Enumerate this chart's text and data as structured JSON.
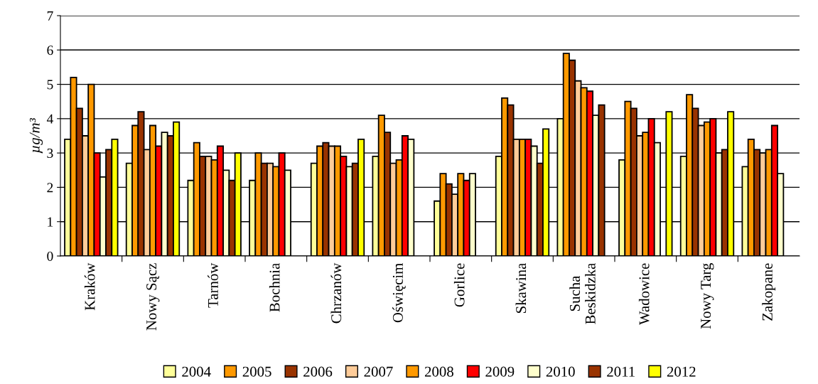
{
  "chart_data": {
    "type": "bar",
    "ylabel": "µg/m³",
    "categories": [
      "Kraków",
      "Nowy Sącz",
      "Tarnów",
      "Bochnia",
      "Chrzanów",
      "Oświęcim",
      "Gorlice",
      "Skawina",
      "Sucha\nBeskidzka",
      "Wadowice",
      "Nowy Targ",
      "Zakopane"
    ],
    "series": [
      {
        "name": "2004",
        "color": "#ffff99",
        "values": [
          3.4,
          2.7,
          2.2,
          2.2,
          2.7,
          2.9,
          1.6,
          2.9,
          4.0,
          2.8,
          2.9,
          2.6
        ]
      },
      {
        "name": "2005",
        "color": "#ff9900",
        "values": [
          5.2,
          3.8,
          3.3,
          3.0,
          3.2,
          4.1,
          2.4,
          4.6,
          5.9,
          4.5,
          4.7,
          3.4
        ]
      },
      {
        "name": "2006",
        "color": "#993300",
        "values": [
          4.3,
          4.2,
          2.9,
          2.7,
          3.3,
          3.6,
          2.1,
          4.4,
          5.7,
          4.3,
          4.3,
          3.1
        ]
      },
      {
        "name": "2007",
        "color": "#ffcc99",
        "values": [
          3.5,
          3.1,
          2.9,
          2.7,
          3.2,
          2.7,
          1.8,
          3.4,
          5.1,
          3.5,
          3.8,
          3.0
        ]
      },
      {
        "name": "2008",
        "color": "#ff9900",
        "values": [
          5.0,
          3.8,
          2.8,
          2.6,
          3.2,
          2.8,
          2.4,
          3.4,
          4.9,
          3.6,
          3.9,
          3.1
        ]
      },
      {
        "name": "2009",
        "color": "#ff0000",
        "values": [
          3.0,
          3.2,
          3.2,
          3.0,
          2.9,
          3.5,
          2.2,
          3.4,
          4.8,
          4.0,
          4.0,
          3.8
        ]
      },
      {
        "name": "2010",
        "color": "#ffffcc",
        "values": [
          2.3,
          3.6,
          2.5,
          2.5,
          2.6,
          3.4,
          2.4,
          3.2,
          4.1,
          3.3,
          3.0,
          2.4
        ]
      },
      {
        "name": "2011",
        "color": "#993300",
        "values": [
          3.1,
          3.5,
          2.2,
          null,
          2.7,
          null,
          null,
          2.7,
          4.4,
          null,
          3.1,
          null
        ]
      },
      {
        "name": "2012",
        "color": "#ffff00",
        "values": [
          3.4,
          3.9,
          3.0,
          null,
          3.4,
          null,
          null,
          3.7,
          null,
          4.2,
          4.2,
          null
        ]
      }
    ],
    "ylim": [
      0,
      7
    ],
    "yticks": [
      0,
      1,
      2,
      3,
      4,
      5,
      6,
      7
    ],
    "grid": "y",
    "legend": "bottom"
  }
}
